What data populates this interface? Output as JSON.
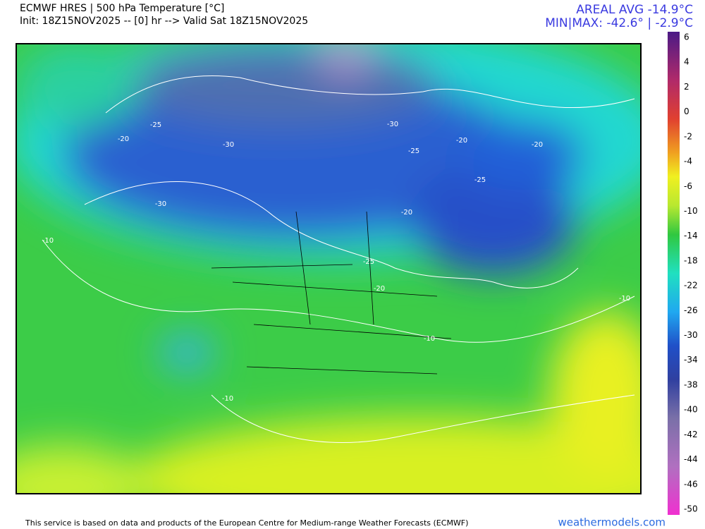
{
  "header": {
    "title": "ECMWF HRES | 500 hPa Temperature [°C]",
    "init": "Init: 18Z15NOV2025 -- [0] hr --> Valid Sat 18Z15NOV2025",
    "areal_avg": "AREAL AVG -14.9°C",
    "min_max": "MIN|MAX: -42.6° | -2.9°C"
  },
  "colorbar": {
    "labels": [
      6,
      4,
      2,
      0,
      -2,
      -4,
      -6,
      -10,
      -14,
      -18,
      -22,
      -26,
      -30,
      -34,
      -38,
      -40,
      -42,
      -44,
      -46,
      -50
    ]
  },
  "map_labels": [
    -25,
    -20,
    -30,
    -30,
    -10,
    -30,
    -25,
    -20,
    -20,
    -25,
    -20,
    -25,
    -20,
    -10,
    -10,
    -10
  ],
  "footer": {
    "notice": "This service is based on data and products of the European Centre for Medium-range Weather Forecasts (ECMWF)",
    "site": "weathermodels.com"
  }
}
